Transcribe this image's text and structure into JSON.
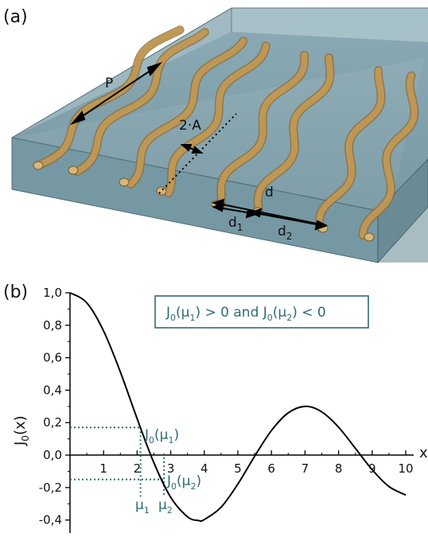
{
  "panel_a": {
    "label": "(a)",
    "labels": {
      "period": "P",
      "amplitude": "2·A",
      "spacing": "d",
      "d1_base": "d",
      "d1_sub": "1",
      "d2_base": "d",
      "d2_sub": "2"
    },
    "colors": {
      "block": "#7fa3b0",
      "fiber": "#c49a55"
    }
  },
  "panel_b": {
    "label": "(b)",
    "annotation": {
      "J1": "J",
      "s1": "0",
      "a1": "(μ",
      "s2": "1",
      "a2": ") > 0 and ",
      "J2": "J",
      "s3": "0",
      "a3": "(μ",
      "s4": "2",
      "a4": ") < 0"
    },
    "label_j1": {
      "J": "J",
      "s0": "0",
      "mu": "(μ",
      "s1": "1",
      "close": ")"
    },
    "label_j2": {
      "J": "J",
      "s0": "0",
      "mu": "(μ",
      "s2": "2",
      "close": ")"
    },
    "mu1": {
      "mu": "μ",
      "sub": "1"
    },
    "mu2": {
      "mu": "μ",
      "sub": "2"
    },
    "y_axis_label": {
      "J": "J",
      "sub": "0",
      "rest": "(x)"
    },
    "x_axis_label": "x",
    "colors": {
      "curve": "#000000",
      "guide": "#2e6b73"
    }
  },
  "chart_data": {
    "type": "line",
    "series": [
      {
        "x": [
          0,
          0.5,
          1,
          1.5,
          2,
          2.5,
          3,
          3.5,
          3.83,
          4,
          4.5,
          5,
          5.5,
          6,
          6.5,
          7.02,
          7.5,
          8,
          8.5,
          9,
          9.5,
          10
        ],
        "y": [
          1.0,
          0.938,
          0.765,
          0.512,
          0.224,
          -0.048,
          -0.26,
          -0.38,
          -0.403,
          -0.397,
          -0.321,
          -0.178,
          -0.007,
          0.151,
          0.26,
          0.3,
          0.266,
          0.172,
          0.042,
          -0.09,
          -0.194,
          -0.246
        ]
      }
    ],
    "guides": {
      "mu1": 2.1,
      "J0_mu1": 0.17,
      "mu2": 2.8,
      "J0_mu2": -0.15
    },
    "xlim": [
      0,
      10
    ],
    "ylim": [
      -0.48,
      1.0
    ],
    "xticks": [
      "1",
      "2",
      "3",
      "4",
      "5",
      "6",
      "7",
      "8",
      "9",
      "10"
    ],
    "yticks": [
      "1,0",
      "0,8",
      "0,6",
      "0,4",
      "0,2",
      "0,0",
      "-0,2",
      "-0,4"
    ],
    "ytick_values": [
      1.0,
      0.8,
      0.6,
      0.4,
      0.2,
      0.0,
      -0.2,
      -0.4
    ]
  }
}
